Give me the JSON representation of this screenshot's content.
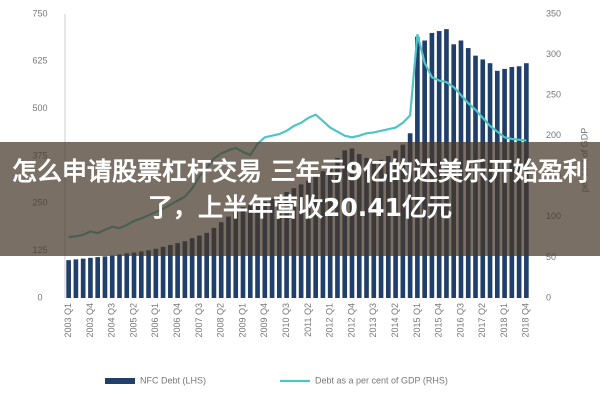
{
  "chart_data": {
    "type": "bar_line",
    "categories": [
      "2003 Q1",
      null,
      null,
      "2003 Q4",
      null,
      null,
      "2004 Q3",
      null,
      null,
      "2005 Q2",
      null,
      null,
      "2006 Q1",
      null,
      null,
      "2006 Q4",
      null,
      null,
      "2007 Q3",
      null,
      null,
      "2008 Q2",
      null,
      null,
      "2009 Q1",
      null,
      null,
      "2009 Q4",
      null,
      null,
      "2010 Q3",
      null,
      null,
      "2011 Q2",
      null,
      null,
      "2012 Q1",
      null,
      null,
      "2012 Q4",
      null,
      null,
      "2013 Q3",
      null,
      null,
      "2014 Q2",
      null,
      null,
      "2015 Q1",
      null,
      null,
      "2015 Q4",
      null,
      null,
      "2016 Q3",
      null,
      null,
      "2017 Q2",
      null,
      null,
      "2018 Q1",
      null,
      null,
      "2018 Q4"
    ],
    "series": [
      {
        "name": "NFC Debt (LHS)",
        "color": "#213f6b",
        "kind": "bar",
        "values": [
          100,
          102,
          104,
          106,
          108,
          110,
          112,
          115,
          118,
          120,
          123,
          126,
          130,
          135,
          140,
          145,
          150,
          158,
          165,
          172,
          185,
          200,
          215,
          230,
          240,
          245,
          250,
          255,
          262,
          270,
          280,
          290,
          300,
          310,
          322,
          335,
          350,
          370,
          390,
          395,
          380,
          370,
          362,
          365,
          375,
          390,
          405,
          435,
          690,
          680,
          700,
          705,
          710,
          670,
          680,
          660,
          640,
          630,
          620,
          600,
          605,
          610,
          612,
          620
        ]
      },
      {
        "name": "Debt as a per cent of GDP (RHS)",
        "color": "#4fc4c4",
        "kind": "line",
        "axis": "y2",
        "values": [
          75,
          76,
          78,
          82,
          80,
          84,
          88,
          86,
          90,
          95,
          98,
          102,
          106,
          110,
          115,
          120,
          125,
          135,
          150,
          160,
          172,
          178,
          182,
          185,
          180,
          176,
          190,
          198,
          200,
          202,
          206,
          212,
          216,
          222,
          226,
          218,
          210,
          205,
          200,
          198,
          200,
          203,
          204,
          206,
          208,
          210,
          216,
          225,
          325,
          290,
          272,
          268,
          266,
          260,
          250,
          240,
          232,
          222,
          212,
          205,
          198,
          196,
          195,
          194
        ]
      }
    ],
    "ylim": [
      0,
      750
    ],
    "yticks": [
      0,
      125,
      250,
      375,
      500,
      625,
      750
    ],
    "y2lim": [
      0,
      350
    ],
    "y2ticks": [
      0,
      50,
      100,
      150,
      200,
      250,
      300,
      350
    ],
    "y2label": "per cent of GDP",
    "annotation": "怎么申请股票杠杆交易 三年亏9亿的达美乐开始盈利了，上半年营收20.41亿元"
  }
}
